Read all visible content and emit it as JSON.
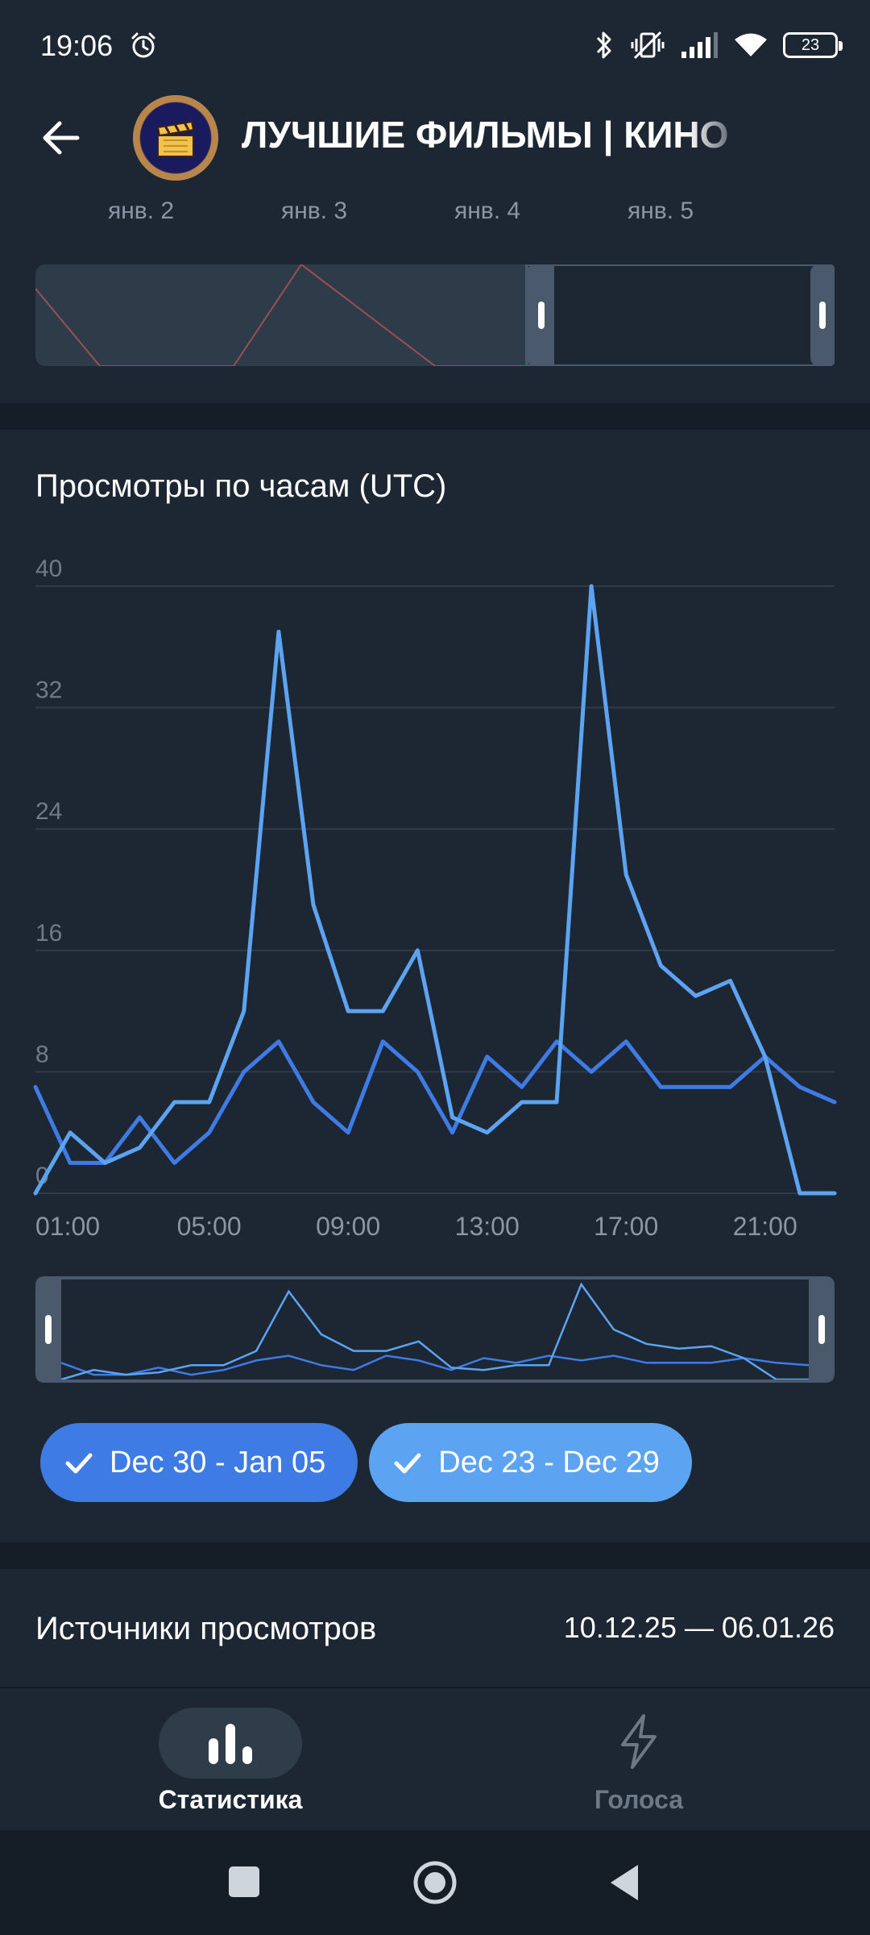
{
  "status_bar": {
    "time": "19:06",
    "battery": "23",
    "icons": [
      "alarm-icon",
      "bluetooth-icon",
      "vibrate-off-icon",
      "signal-icon",
      "wifi-icon",
      "battery-icon"
    ]
  },
  "header": {
    "title": "ЛУЧШИЕ ФИЛЬМЫ | КИНО",
    "back_icon": "arrow-left-icon",
    "avatar_icon": "clapperboard-icon"
  },
  "top_navigator": {
    "date_labels": [
      "янв. 2",
      "янв. 3",
      "янв. 4",
      "янв. 5"
    ]
  },
  "views_by_hour": {
    "title": "Просмотры по часам (UTC)"
  },
  "chart_data": {
    "type": "line",
    "title": "Просмотры по часам (UTC)",
    "x": [
      "00:00",
      "01:00",
      "02:00",
      "03:00",
      "04:00",
      "05:00",
      "06:00",
      "07:00",
      "08:00",
      "09:00",
      "10:00",
      "11:00",
      "12:00",
      "13:00",
      "14:00",
      "15:00",
      "16:00",
      "17:00",
      "18:00",
      "19:00",
      "20:00",
      "21:00",
      "22:00",
      "23:00"
    ],
    "x_tick_labels": [
      "01:00",
      "05:00",
      "09:00",
      "13:00",
      "17:00",
      "21:00"
    ],
    "y_tick_labels": [
      "0",
      "8",
      "16",
      "24",
      "32",
      "40"
    ],
    "ylim": [
      0,
      40
    ],
    "grid": true,
    "series": [
      {
        "name": "Dec 30 - Jan 05",
        "color": "#3e7be4",
        "values": [
          7,
          2,
          2,
          5,
          2,
          4,
          8,
          10,
          6,
          4,
          10,
          8,
          4,
          9,
          7,
          10,
          8,
          10,
          7,
          7,
          7,
          9,
          7,
          6
        ]
      },
      {
        "name": "Dec 23 - Dec 29",
        "color": "#5ca3f2",
        "values": [
          0,
          4,
          2,
          3,
          6,
          6,
          12,
          37,
          19,
          12,
          12,
          16,
          5,
          4,
          6,
          6,
          40,
          21,
          15,
          13,
          14,
          9,
          0,
          0
        ]
      }
    ]
  },
  "legend": {
    "chips": [
      {
        "label": "Dec 30 - Jan 05",
        "icon": "check-icon"
      },
      {
        "label": "Dec 23 - Dec 29",
        "icon": "check-icon"
      }
    ]
  },
  "sources": {
    "title": "Источники просмотров",
    "date_range": "10.12.25 — 06.01.26"
  },
  "bottom_nav": {
    "items": [
      {
        "label": "Статистика",
        "icon": "bar-chart-icon",
        "active": true
      },
      {
        "label": "Голоса",
        "icon": "lightning-icon",
        "active": false
      }
    ]
  },
  "colors": {
    "background": "#1d2733",
    "separator": "#151d26",
    "series1": "#3e7be4",
    "series2": "#5ca3f2",
    "muted_text": "#8a96a3"
  }
}
